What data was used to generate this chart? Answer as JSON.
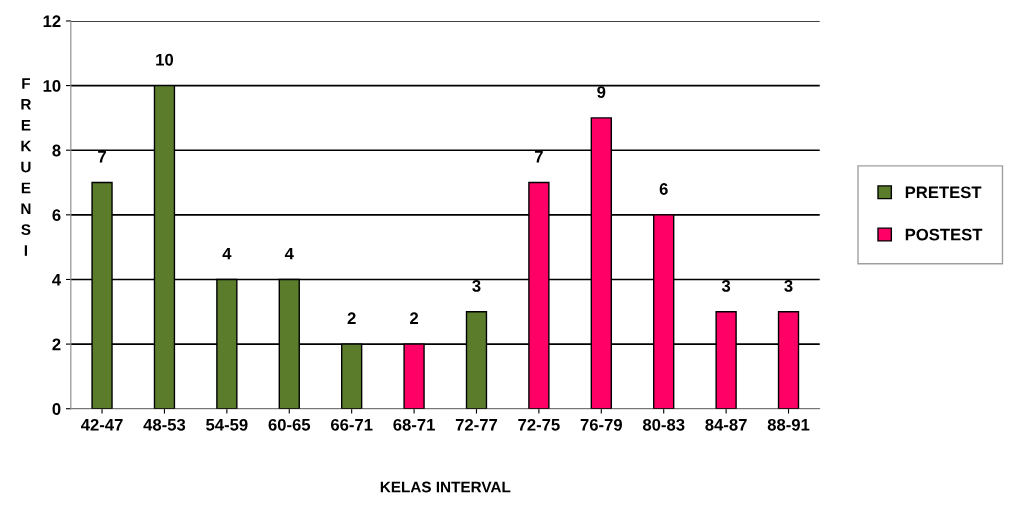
{
  "chart_data": {
    "type": "bar",
    "xlabel": "KELAS INTERVAL",
    "ylabel": "FREKUENSI",
    "categories": [
      "42-47",
      "48-53",
      "54-59",
      "60-65",
      "66-71",
      "68-71",
      "72-77",
      "72-75",
      "76-79",
      "80-83",
      "84-87",
      "88-91"
    ],
    "series": [
      {
        "name": "PRETEST",
        "color": "#5b7d2b",
        "values": [
          7,
          10,
          4,
          4,
          2,
          null,
          3,
          null,
          null,
          null,
          null,
          null
        ]
      },
      {
        "name": "POSTEST",
        "color": "#ff0066",
        "values": [
          null,
          null,
          null,
          null,
          null,
          2,
          null,
          7,
          9,
          6,
          3,
          3
        ]
      }
    ],
    "ylim": [
      0,
      12
    ],
    "yticks": [
      0,
      2,
      4,
      6,
      8,
      10,
      12
    ],
    "grid": "y",
    "legend": "right",
    "data_labels": true
  }
}
